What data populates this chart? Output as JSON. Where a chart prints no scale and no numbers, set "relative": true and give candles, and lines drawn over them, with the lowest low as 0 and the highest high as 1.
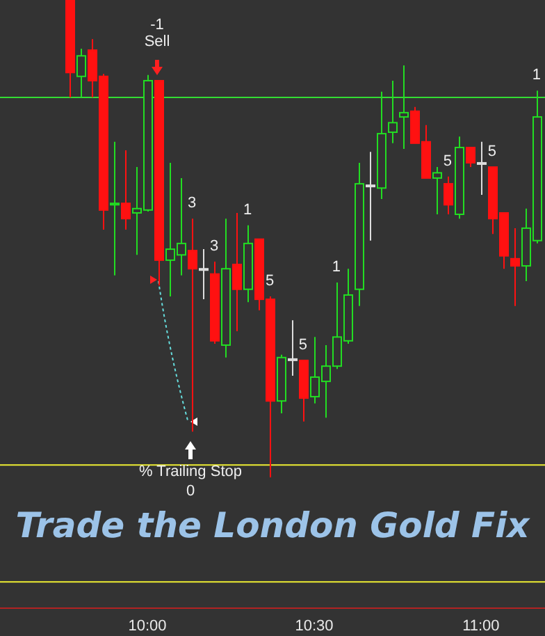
{
  "chart_data": {
    "type": "candlestick",
    "title": "Trade the London Gold Fix",
    "relative": true,
    "tick_labels": "x",
    "xlim": [
      9.558,
      11.192
    ],
    "xticks": [
      {
        "value": 10,
        "label": "10:00"
      },
      {
        "value": 10.5,
        "label": "10:30"
      },
      {
        "value": 11,
        "label": "11:00"
      }
    ],
    "x": [
      9.7667,
      9.8,
      9.8333,
      9.8667,
      9.9,
      9.9333,
      9.9667,
      10,
      10.0333,
      10.0667,
      10.1,
      10.1333,
      10.1667,
      10.2,
      10.2333,
      10.2667,
      10.3,
      10.3333,
      10.3667,
      10.4,
      10.4333,
      10.4667,
      10.5,
      10.5333,
      10.5667,
      10.6,
      10.6333,
      10.6667,
      10.7,
      10.7333,
      10.7667,
      10.8,
      10.8333,
      10.8667,
      10.9,
      10.9333,
      10.9667,
      11,
      11.0333,
      11.0667,
      11.1,
      11.1333,
      11.1667
    ],
    "ohlc": [
      [
        1,
        1,
        0.796,
        0.848
      ],
      [
        0.84,
        0.898,
        0.796,
        0.883
      ],
      [
        0.895,
        0.918,
        0.796,
        0.831
      ],
      [
        0.84,
        0.845,
        0.519,
        0.56
      ],
      [
        0.571,
        0.703,
        0.423,
        0.574
      ],
      [
        0.574,
        0.685,
        0.519,
        0.542
      ],
      [
        0.554,
        0.65,
        0.466,
        0.563
      ],
      [
        0.56,
        0.843,
        0.557,
        0.831
      ],
      [
        0.831,
        0.831,
        0.402,
        0.455
      ],
      [
        0.455,
        0.659,
        0.379,
        0.478
      ],
      [
        0.466,
        0.627,
        0.423,
        0.49
      ],
      [
        0.475,
        0.542,
        0.096,
        0.437
      ],
      [
        0.437,
        0.478,
        0.373,
        0.437
      ],
      [
        0.426,
        0.452,
        0.28,
        0.286
      ],
      [
        0.277,
        0.542,
        0.251,
        0.437
      ],
      [
        0.446,
        0.554,
        0.306,
        0.394
      ],
      [
        0.394,
        0.528,
        0.367,
        0.49
      ],
      [
        0.499,
        0.499,
        0.35,
        0.373
      ],
      [
        0.373,
        0.379,
        0,
        0.16
      ],
      [
        0.16,
        0.257,
        0.134,
        0.251
      ],
      [
        0.248,
        0.329,
        0.213,
        0.248
      ],
      [
        0.245,
        0.245,
        0.117,
        0.166
      ],
      [
        0.169,
        0.294,
        0.155,
        0.21
      ],
      [
        0.201,
        0.277,
        0.125,
        0.233
      ],
      [
        0.233,
        0.408,
        0.227,
        0.294
      ],
      [
        0.286,
        0.437,
        0.28,
        0.382
      ],
      [
        0.394,
        0.659,
        0.359,
        0.615
      ],
      [
        0.612,
        0.682,
        0.496,
        0.612
      ],
      [
        0.606,
        0.808,
        0.583,
        0.72
      ],
      [
        0.723,
        0.831,
        0.7,
        0.743
      ],
      [
        0.755,
        0.863,
        0.688,
        0.764
      ],
      [
        0.767,
        0.776,
        0.7,
        0.7
      ],
      [
        0.703,
        0.738,
        0.627,
        0.627
      ],
      [
        0.627,
        0.65,
        0.551,
        0.638
      ],
      [
        0.615,
        0.63,
        0.551,
        0.571
      ],
      [
        0.551,
        0.714,
        0.542,
        0.691
      ],
      [
        0.691,
        0.691,
        0.65,
        0.659
      ],
      [
        0.659,
        0.703,
        0.592,
        0.659
      ],
      [
        0.65,
        0.65,
        0.51,
        0.542
      ],
      [
        0.554,
        0.554,
        0.437,
        0.464
      ],
      [
        0.458,
        0.522,
        0.359,
        0.443
      ],
      [
        0.443,
        0.563,
        0.411,
        0.522
      ],
      [
        0.496,
        0.81,
        0.49,
        0.755
      ]
    ],
    "colors": [
      "#ff1111",
      "#22dd22",
      "#ff1111",
      "#ff1111",
      "#22dd22",
      "#ff1111",
      "#22dd22",
      "#22dd22",
      "#ff1111",
      "#22dd22",
      "#22dd22",
      "#ff1111",
      "#dddddd",
      "#ff1111",
      "#22dd22",
      "#ff1111",
      "#22dd22",
      "#ff1111",
      "#ff1111",
      "#22dd22",
      "#dddddd",
      "#ff1111",
      "#22dd22",
      "#22dd22",
      "#22dd22",
      "#22dd22",
      "#22dd22",
      "#dddddd",
      "#22dd22",
      "#22dd22",
      "#22dd22",
      "#ff1111",
      "#ff1111",
      "#22dd22",
      "#ff1111",
      "#22dd22",
      "#ff1111",
      "#dddddd",
      "#ff1111",
      "#ff1111",
      "#ff1111",
      "#22dd22",
      "#22dd22"
    ],
    "ref_lines": [
      {
        "axis": "y",
        "value": 0.796,
        "color": "#33dd33"
      },
      {
        "axis": "y",
        "value": 0.026,
        "color": "#eeee33"
      },
      {
        "axis": "y",
        "value": -0.219,
        "color": "#eeee33"
      }
    ],
    "annotations": [
      "-1",
      "Sell",
      "% Trailing Stop",
      "0",
      {
        "text": "3",
        "x": 10.1333,
        "y": 0.542
      },
      {
        "text": "3",
        "x": 10.2,
        "y": 0.452
      },
      {
        "text": "1",
        "x": 10.3,
        "y": 0.528
      },
      {
        "text": "5",
        "x": 10.3667,
        "y": 0.379
      },
      {
        "text": "5",
        "x": 10.4667,
        "y": 0.245
      },
      {
        "text": "1",
        "x": 10.5667,
        "y": 0.408
      },
      {
        "text": "5",
        "x": 10.9,
        "y": 0.63
      },
      {
        "text": "5",
        "x": 11.0333,
        "y": 0.65
      },
      {
        "text": "1",
        "x": 11.1667,
        "y": 0.81
      }
    ]
  }
}
